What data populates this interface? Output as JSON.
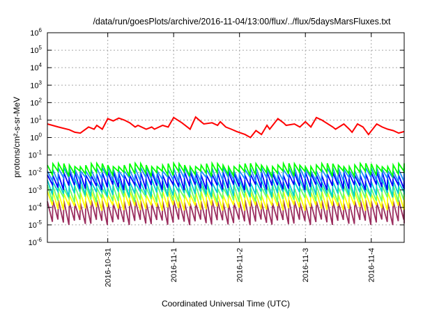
{
  "chart_data": {
    "type": "line",
    "title": "/data/run/goesPlots/archive/2016-11-04/13:00/flux/../flux/5daysMarsFluxes.txt",
    "xlabel": "Coordinated Universal Time (UTC)",
    "ylabel": "protons/cm²-s-sr-MeV",
    "xlim": [
      "2016-10-30 02:00",
      "2016-11-04 12:00"
    ],
    "ylim": [
      1e-06,
      1000000.0
    ],
    "yscale": "log",
    "grid": true,
    "legend": "none",
    "x_ticks": [
      "2016-10-31",
      "2016-11-1",
      "2016-11-2",
      "2016-11-3",
      "2016-11-4"
    ],
    "y_ticks": [
      {
        "value": 1e-06,
        "base": "10",
        "exp": "-6"
      },
      {
        "value": 1e-05,
        "base": "10",
        "exp": "-5"
      },
      {
        "value": 0.0001,
        "base": "10",
        "exp": "-4"
      },
      {
        "value": 0.001,
        "base": "10",
        "exp": "-3"
      },
      {
        "value": 0.01,
        "base": "10",
        "exp": "-2"
      },
      {
        "value": 0.1,
        "base": "10",
        "exp": "-1"
      },
      {
        "value": 1,
        "base": "10",
        "exp": "0"
      },
      {
        "value": 10,
        "base": "10",
        "exp": "1"
      },
      {
        "value": 100,
        "base": "10",
        "exp": "2"
      },
      {
        "value": 1000,
        "base": "10",
        "exp": "3"
      },
      {
        "value": 10000,
        "base": "10",
        "exp": "4"
      },
      {
        "value": 100000,
        "base": "10",
        "exp": "5"
      },
      {
        "value": 1000000,
        "base": "10",
        "exp": "6"
      }
    ],
    "series": [
      {
        "color": "#ff0000",
        "x": [
          "2016-10-30 02:00",
          "2016-10-30 06:00",
          "2016-10-30 10:00",
          "2016-10-30 12:00",
          "2016-10-30 14:00",
          "2016-10-30 17:00",
          "2016-10-30 19:00",
          "2016-10-30 20:00",
          "2016-10-30 22:00",
          "2016-10-31 00:00",
          "2016-10-31 02:00",
          "2016-10-31 04:00",
          "2016-10-31 06:00",
          "2016-10-31 08:00",
          "2016-10-31 10:00",
          "2016-10-31 11:00",
          "2016-10-31 14:00",
          "2016-10-31 16:00",
          "2016-10-31 17:00",
          "2016-10-31 20:00",
          "2016-10-31 22:00",
          "2016-11-01 00:00",
          "2016-11-01 03:00",
          "2016-11-01 05:00",
          "2016-11-01 06:00",
          "2016-11-01 08:00",
          "2016-11-01 10:00",
          "2016-11-01 11:00",
          "2016-11-01 14:00",
          "2016-11-01 16:00",
          "2016-11-01 17:00",
          "2016-11-01 19:00",
          "2016-11-01 21:00",
          "2016-11-01 23:00",
          "2016-11-02 02:00",
          "2016-11-02 04:00",
          "2016-11-02 06:00",
          "2016-11-02 08:00",
          "2016-11-02 10:00",
          "2016-11-02 11:00",
          "2016-11-02 14:00",
          "2016-11-02 16:00",
          "2016-11-02 17:00",
          "2016-11-02 20:00",
          "2016-11-02 22:00",
          "2016-11-03 00:00",
          "2016-11-03 02:00",
          "2016-11-03 04:00",
          "2016-11-03 06:00",
          "2016-11-03 10:00",
          "2016-11-03 11:00",
          "2016-11-03 14:00",
          "2016-11-03 16:00",
          "2016-11-03 17:00",
          "2016-11-03 19:00",
          "2016-11-03 21:00",
          "2016-11-03 23:00",
          "2016-11-04 02:00",
          "2016-11-04 04:00",
          "2016-11-04 06:00",
          "2016-11-04 08:00",
          "2016-11-04 10:00",
          "2016-11-04 12:00"
        ],
        "y": [
          6,
          4,
          2.8,
          2,
          1.8,
          4,
          3,
          5,
          3,
          12,
          9,
          13,
          10,
          7,
          4,
          5,
          3,
          4,
          3,
          5,
          4,
          14,
          7,
          4,
          3,
          15,
          8,
          6,
          7,
          5,
          8,
          4,
          3,
          2.2,
          1.5,
          1.0,
          2.5,
          1.5,
          5,
          3,
          12,
          7,
          5,
          6,
          4,
          8,
          4,
          14,
          10,
          4,
          3,
          6,
          3,
          2,
          6,
          4,
          1.5,
          6,
          4,
          3,
          2.5,
          1.8,
          2.2
        ]
      }
    ],
    "bands": [
      {
        "color": "#00ff00",
        "low": 0.009,
        "high": 0.028
      },
      {
        "color": "#1e90ff",
        "low": 0.004,
        "high": 0.016
      },
      {
        "color": "#0000ff",
        "low": 0.0015,
        "high": 0.009
      },
      {
        "color": "#00cfcf",
        "low": 0.0006,
        "high": 0.0035
      },
      {
        "color": "#66ff66",
        "low": 0.0003,
        "high": 0.0016
      },
      {
        "color": "#ffff00",
        "low": 0.0001,
        "high": 0.0007
      },
      {
        "color": "#9b2d5e",
        "low": 1.5e-05,
        "high": 0.00022
      }
    ]
  }
}
